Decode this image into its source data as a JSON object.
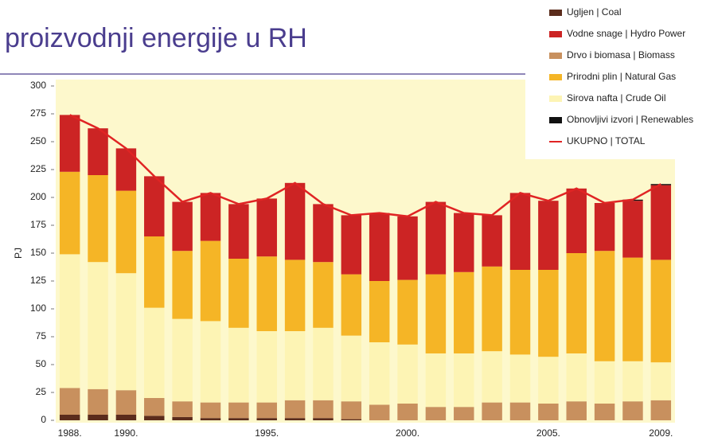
{
  "chart_data": {
    "type": "bar",
    "title": "proizvodnji energije u RH",
    "ylabel": "PJ",
    "categories": [
      "1988.",
      null,
      "1990.",
      null,
      null,
      null,
      null,
      "1995.",
      null,
      null,
      null,
      null,
      "2000.",
      null,
      null,
      null,
      null,
      "2005.",
      null,
      null,
      null,
      "2009."
    ],
    "series": [
      {
        "name": "Ugljen | Coal",
        "color": "#5b2c1c",
        "values": [
          5,
          5,
          5,
          4,
          3,
          2,
          2,
          2,
          2,
          2,
          1,
          0,
          0,
          0,
          0,
          0,
          0,
          0,
          0,
          0,
          0,
          0
        ]
      },
      {
        "name": "Drvo i biomasa | Biomass",
        "color": "#c8905e",
        "values": [
          24,
          23,
          22,
          16,
          14,
          14,
          14,
          14,
          16,
          16,
          16,
          14,
          15,
          12,
          12,
          16,
          16,
          15,
          17,
          15,
          17,
          18
        ]
      },
      {
        "name": "Sirova nafta | Crude Oil",
        "color": "#fdf4b4",
        "values": [
          120,
          114,
          105,
          81,
          74,
          73,
          67,
          64,
          62,
          65,
          59,
          56,
          53,
          48,
          48,
          46,
          43,
          42,
          43,
          38,
          36,
          34
        ]
      },
      {
        "name": "Prirodni plin | Natural Gas",
        "color": "#f5b526",
        "values": [
          74,
          78,
          74,
          64,
          61,
          72,
          62,
          67,
          64,
          59,
          55,
          55,
          58,
          71,
          73,
          76,
          76,
          78,
          90,
          99,
          93,
          92
        ]
      },
      {
        "name": "Vodne snage | Hydro Power",
        "color": "#cc2424",
        "values": [
          51,
          42,
          38,
          54,
          44,
          43,
          49,
          52,
          69,
          52,
          53,
          61,
          57,
          65,
          53,
          46,
          69,
          62,
          58,
          43,
          51,
          67
        ]
      },
      {
        "name": "Obnovljivi izvori | Renewables",
        "color": "#111111",
        "values": [
          0,
          0,
          0,
          0,
          0,
          0,
          0,
          0,
          0,
          0,
          0,
          0,
          0,
          0,
          0,
          0,
          0,
          0,
          0,
          0,
          1,
          1
        ]
      }
    ],
    "legend_order": [
      0,
      4,
      1,
      3,
      2,
      5
    ],
    "total": {
      "name": "UKUPNO | TOTAL",
      "color": "#e02424",
      "values": [
        274,
        262,
        244,
        219,
        196,
        204,
        194,
        199,
        213,
        194,
        184,
        186,
        183,
        196,
        186,
        184,
        204,
        197,
        208,
        195,
        198,
        212
      ]
    },
    "ylim": [
      0,
      300
    ],
    "yticks": [
      0,
      25,
      50,
      75,
      100,
      125,
      150,
      175,
      200,
      225,
      250,
      275,
      300
    ],
    "grid": false
  }
}
